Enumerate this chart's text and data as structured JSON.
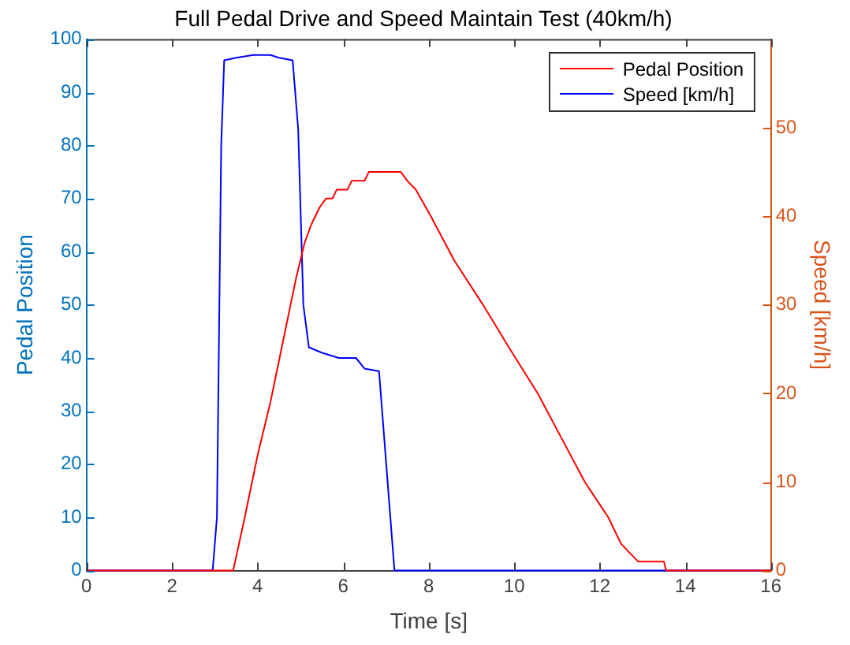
{
  "chart_data": {
    "type": "line",
    "title": "Full Pedal Drive and Speed Maintain Test (40km/h)",
    "xlabel": "Time [s]",
    "ylabel": "Pedal Position",
    "y2label": "Speed [km/h]",
    "xlim": [
      0,
      16
    ],
    "xticks": [
      0,
      2,
      4,
      6,
      8,
      10,
      12,
      14,
      16
    ],
    "ylim": [
      0,
      100
    ],
    "yticks": [
      0,
      10,
      20,
      30,
      40,
      50,
      60,
      70,
      80,
      90,
      100
    ],
    "y2lim": [
      0,
      60
    ],
    "y2ticks": [
      0,
      10,
      20,
      30,
      40,
      50
    ],
    "grid": false,
    "legend": "top right",
    "marker": "none",
    "line_style": "solid",
    "series": [
      {
        "name": "Pedal Position",
        "color": "#ff0000",
        "axis": "y2",
        "x": [
          0,
          3.43,
          3.7,
          4.0,
          4.3,
          4.6,
          4.9,
          5.1,
          5.25,
          5.45,
          5.6,
          5.75,
          5.85,
          6.1,
          6.2,
          6.5,
          6.6,
          7.35,
          7.5,
          7.7,
          8.05,
          8.6,
          9.27,
          9.9,
          10.55,
          11.1,
          11.65,
          12.2,
          12.5,
          12.9,
          13.5,
          13.55,
          16
        ],
        "values": [
          0,
          0,
          6,
          13,
          19,
          26,
          33,
          37,
          39,
          41,
          42,
          42,
          43,
          43,
          44,
          44,
          45,
          45,
          44,
          43,
          40,
          35,
          30,
          25,
          20,
          15,
          10,
          6,
          3,
          1,
          1,
          0,
          0
        ]
      },
      {
        "name": "Speed [km/h]",
        "color": "#0000ff",
        "axis": "y",
        "x": [
          0,
          2.95,
          3.05,
          3.15,
          3.22,
          3.5,
          3.9,
          4.3,
          4.5,
          4.82,
          4.95,
          5.07,
          5.2,
          5.5,
          5.9,
          6.3,
          6.5,
          6.84,
          7.2,
          16
        ],
        "values": [
          0,
          0,
          10,
          80,
          96,
          96.5,
          97,
          97,
          96.5,
          96,
          83,
          50,
          42,
          41,
          40,
          40,
          38,
          37.5,
          0,
          0
        ]
      }
    ]
  }
}
